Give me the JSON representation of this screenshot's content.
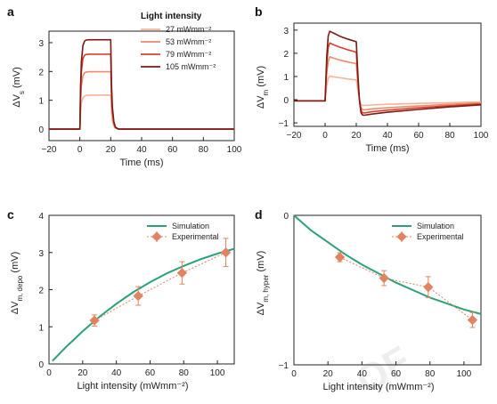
{
  "watermark": "OF",
  "chart_data": [
    {
      "panel": "a",
      "type": "line",
      "xlabel": "Time (ms)",
      "ylabel": "ΔV_s (mV)",
      "xlim": [
        -20,
        100
      ],
      "ylim": [
        -0.4,
        3.4
      ],
      "xticks": [
        -20,
        0,
        20,
        40,
        60,
        80,
        100
      ],
      "yticks": [
        0,
        1,
        2,
        3
      ],
      "legend": {
        "title": "Light intensity",
        "placement": "top-right"
      },
      "series": [
        {
          "name": "27 mWmm⁻²",
          "color": "#f4b49b",
          "x": [
            -20,
            0,
            0.5,
            1,
            2,
            3,
            4,
            6,
            8,
            20,
            20.5,
            21,
            22,
            23,
            25,
            100
          ],
          "y": [
            0,
            0,
            0.6,
            0.9,
            1.08,
            1.14,
            1.17,
            1.18,
            1.18,
            1.18,
            0.6,
            0.3,
            0.1,
            0.03,
            0,
            0
          ]
        },
        {
          "name": "53 mWmm⁻²",
          "color": "#ef8a6d",
          "x": [
            -20,
            0,
            0.5,
            1,
            2,
            3,
            4,
            6,
            8,
            20,
            20.5,
            21,
            22,
            23,
            25,
            100
          ],
          "y": [
            0,
            0,
            1.0,
            1.5,
            1.85,
            1.95,
            1.98,
            1.99,
            1.99,
            1.99,
            1.0,
            0.5,
            0.17,
            0.05,
            0,
            0
          ]
        },
        {
          "name": "79 mWmm⁻²",
          "color": "#d7402f",
          "x": [
            -20,
            0,
            0.5,
            1,
            2,
            3,
            4,
            6,
            8,
            20,
            20.5,
            21,
            22,
            23,
            25,
            100
          ],
          "y": [
            0,
            0,
            1.3,
            2.0,
            2.45,
            2.56,
            2.59,
            2.6,
            2.6,
            2.6,
            1.3,
            0.65,
            0.22,
            0.06,
            0,
            0
          ]
        },
        {
          "name": "105 mWmm⁻²",
          "color": "#7a1a14",
          "x": [
            -20,
            0,
            0.5,
            1,
            2,
            3,
            4,
            6,
            8,
            20,
            20.5,
            21,
            22,
            23,
            25,
            100
          ],
          "y": [
            0,
            0,
            1.55,
            2.35,
            2.9,
            3.05,
            3.09,
            3.1,
            3.1,
            3.1,
            1.55,
            0.78,
            0.26,
            0.07,
            0,
            0
          ]
        }
      ]
    },
    {
      "panel": "b",
      "type": "line",
      "xlabel": "Time (ms)",
      "ylabel": "ΔV_m (mV)",
      "xlim": [
        -20,
        100
      ],
      "ylim": [
        -1.15,
        3.3
      ],
      "xticks": [
        -20,
        0,
        20,
        40,
        60,
        80,
        100
      ],
      "yticks": [
        -1,
        0,
        1,
        2,
        3
      ],
      "series": [
        {
          "name": "27 mWmm⁻²",
          "color": "#f4b49b",
          "x": [
            -20,
            0,
            1,
            2,
            3,
            5,
            10,
            15,
            20,
            21,
            22,
            23,
            24,
            25,
            30,
            40,
            60,
            80,
            100
          ],
          "y": [
            -0.05,
            -0.05,
            0.6,
            0.92,
            1.02,
            0.99,
            0.94,
            0.89,
            0.85,
            0.4,
            0.0,
            -0.2,
            -0.25,
            -0.25,
            -0.23,
            -0.2,
            -0.16,
            -0.13,
            -0.1
          ]
        },
        {
          "name": "53 mWmm⁻²",
          "color": "#ef8a6d",
          "x": [
            -20,
            0,
            1,
            2,
            3,
            5,
            10,
            15,
            20,
            21,
            22,
            23,
            24,
            25,
            30,
            40,
            60,
            80,
            100
          ],
          "y": [
            -0.05,
            -0.05,
            1.1,
            1.65,
            1.85,
            1.8,
            1.7,
            1.62,
            1.55,
            0.7,
            0.0,
            -0.35,
            -0.43,
            -0.44,
            -0.4,
            -0.35,
            -0.27,
            -0.2,
            -0.14
          ]
        },
        {
          "name": "79 mWmm⁻²",
          "color": "#d7402f",
          "x": [
            -20,
            0,
            1,
            2,
            3,
            5,
            10,
            15,
            20,
            21,
            22,
            23,
            24,
            25,
            30,
            40,
            60,
            80,
            100
          ],
          "y": [
            -0.05,
            -0.05,
            1.5,
            2.25,
            2.45,
            2.38,
            2.25,
            2.14,
            2.05,
            0.9,
            0.0,
            -0.47,
            -0.56,
            -0.57,
            -0.52,
            -0.45,
            -0.35,
            -0.26,
            -0.18
          ]
        },
        {
          "name": "105 mWmm⁻²",
          "color": "#7a1a14",
          "x": [
            -20,
            0,
            1,
            2,
            3,
            5,
            10,
            15,
            20,
            21,
            22,
            23,
            24,
            25,
            30,
            40,
            60,
            80,
            100
          ],
          "y": [
            -0.05,
            -0.05,
            1.8,
            2.75,
            2.95,
            2.88,
            2.72,
            2.6,
            2.5,
            1.1,
            0.0,
            -0.56,
            -0.66,
            -0.67,
            -0.62,
            -0.54,
            -0.42,
            -0.31,
            -0.22
          ]
        }
      ]
    },
    {
      "panel": "c",
      "type": "scatter",
      "xlabel": "Light intensity (mWmm⁻²)",
      "ylabel": "ΔV_m, depo (mV)",
      "xlim": [
        0,
        110
      ],
      "ylim": [
        0,
        4
      ],
      "xticks": [
        0,
        20,
        40,
        60,
        80,
        100
      ],
      "yticks": [
        0,
        1,
        2,
        3,
        4
      ],
      "legend": {
        "placement": "top-right"
      },
      "series": [
        {
          "name": "Simulation",
          "type": "line",
          "color": "#2aa07a",
          "x": [
            2,
            10,
            20,
            30,
            40,
            50,
            60,
            70,
            80,
            90,
            100,
            110
          ],
          "y": [
            0.08,
            0.45,
            0.88,
            1.27,
            1.62,
            1.93,
            2.2,
            2.44,
            2.64,
            2.82,
            2.97,
            3.1
          ]
        },
        {
          "name": "Experimental",
          "type": "scatter",
          "color": "#e2835f",
          "x": [
            27,
            53,
            79,
            105
          ],
          "y": [
            1.17,
            1.83,
            2.45,
            3.0
          ],
          "error": [
            0.15,
            0.25,
            0.3,
            0.38
          ]
        }
      ]
    },
    {
      "panel": "d",
      "type": "scatter",
      "xlabel": "Light intensity (mWmm⁻²)",
      "ylabel": "ΔV_m, hyper (mV)",
      "xlim": [
        0,
        110
      ],
      "ylim": [
        -1,
        0
      ],
      "xticks": [
        0,
        20,
        40,
        60,
        80,
        100
      ],
      "yticks": [
        -1,
        0
      ],
      "legend": {
        "placement": "top-right"
      },
      "series": [
        {
          "name": "Simulation",
          "type": "line",
          "color": "#2aa07a",
          "x": [
            0,
            10,
            20,
            30,
            40,
            50,
            60,
            70,
            80,
            90,
            100,
            110
          ],
          "y": [
            0,
            -0.1,
            -0.18,
            -0.26,
            -0.33,
            -0.39,
            -0.45,
            -0.5,
            -0.55,
            -0.59,
            -0.63,
            -0.66
          ]
        },
        {
          "name": "Experimental",
          "type": "scatter",
          "color": "#e2835f",
          "x": [
            27,
            53,
            79,
            105
          ],
          "y": [
            -0.28,
            -0.42,
            -0.48,
            -0.7
          ],
          "error": [
            0.03,
            0.05,
            0.07,
            0.05
          ]
        }
      ]
    }
  ]
}
